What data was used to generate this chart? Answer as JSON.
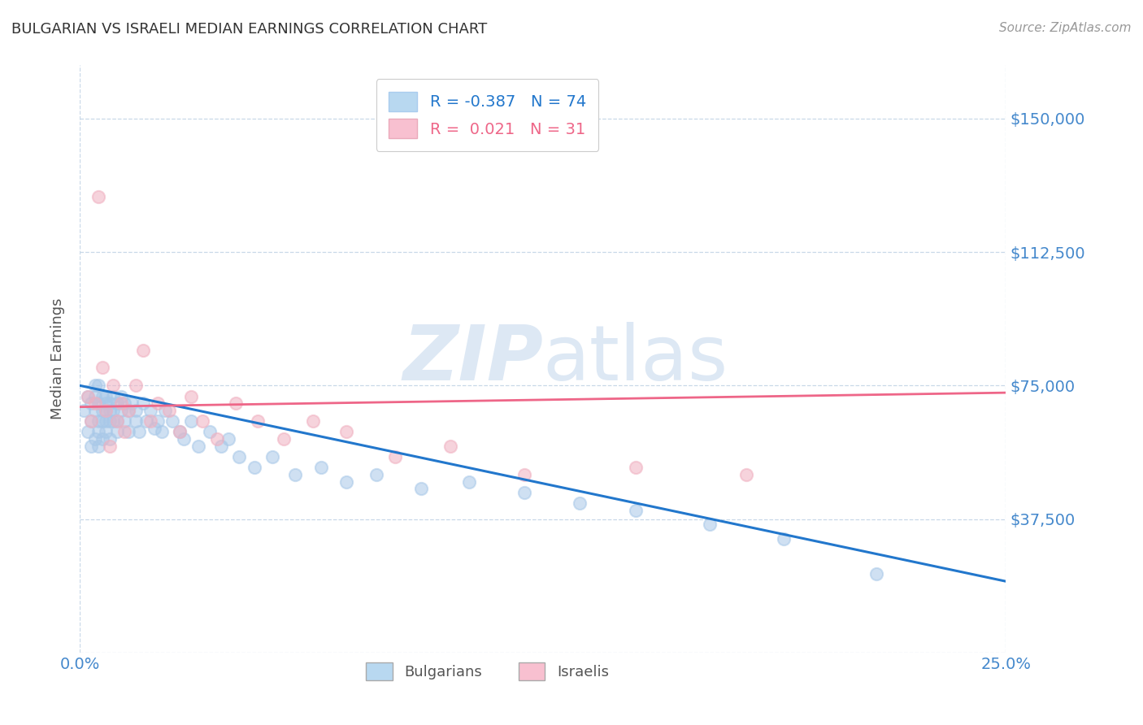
{
  "title": "BULGARIAN VS ISRAELI MEDIAN EARNINGS CORRELATION CHART",
  "source_text": "Source: ZipAtlas.com",
  "ylabel_text": "Median Earnings",
  "xlim": [
    0.0,
    0.25
  ],
  "ylim": [
    0,
    165000
  ],
  "yticks": [
    0,
    37500,
    75000,
    112500,
    150000
  ],
  "ytick_labels_right": [
    "",
    "$37,500",
    "$75,000",
    "$112,500",
    "$150,000"
  ],
  "xticks": [
    0.0,
    0.25
  ],
  "xtick_labels": [
    "0.0%",
    "25.0%"
  ],
  "r_bulgarian": -0.387,
  "n_bulgarian": 74,
  "r_israeli": 0.021,
  "n_israeli": 31,
  "bulgarian_color": "#a8c8e8",
  "israeli_color": "#f0b0c0",
  "bulgarian_line_color": "#2277cc",
  "israeli_line_color": "#ee6688",
  "title_color": "#333333",
  "axis_label_color": "#555555",
  "tick_label_color": "#4488cc",
  "grid_color": "#c8d8e8",
  "watermark_color": "#dde8f4",
  "legend_box_color_bulgarian": "#b8d8f0",
  "legend_box_color_israeli": "#f8c0d0",
  "bulgarians_scatter_x": [
    0.001,
    0.002,
    0.002,
    0.003,
    0.003,
    0.003,
    0.004,
    0.004,
    0.004,
    0.004,
    0.005,
    0.005,
    0.005,
    0.005,
    0.005,
    0.006,
    0.006,
    0.006,
    0.006,
    0.007,
    0.007,
    0.007,
    0.007,
    0.007,
    0.008,
    0.008,
    0.008,
    0.008,
    0.009,
    0.009,
    0.009,
    0.01,
    0.01,
    0.01,
    0.011,
    0.011,
    0.012,
    0.012,
    0.013,
    0.013,
    0.014,
    0.015,
    0.015,
    0.016,
    0.017,
    0.018,
    0.019,
    0.02,
    0.021,
    0.022,
    0.023,
    0.025,
    0.027,
    0.028,
    0.03,
    0.032,
    0.035,
    0.038,
    0.04,
    0.043,
    0.047,
    0.052,
    0.058,
    0.065,
    0.072,
    0.08,
    0.092,
    0.105,
    0.12,
    0.135,
    0.15,
    0.17,
    0.19,
    0.215
  ],
  "bulgarians_scatter_y": [
    68000,
    62000,
    72000,
    65000,
    70000,
    58000,
    75000,
    68000,
    60000,
    72000,
    65000,
    70000,
    58000,
    75000,
    62000,
    68000,
    72000,
    60000,
    65000,
    70000,
    65000,
    68000,
    72000,
    62000,
    70000,
    65000,
    68000,
    60000,
    72000,
    65000,
    68000,
    70000,
    65000,
    62000,
    68000,
    72000,
    65000,
    70000,
    68000,
    62000,
    70000,
    65000,
    68000,
    62000,
    70000,
    65000,
    68000,
    63000,
    65000,
    62000,
    68000,
    65000,
    62000,
    60000,
    65000,
    58000,
    62000,
    58000,
    60000,
    55000,
    52000,
    55000,
    50000,
    52000,
    48000,
    50000,
    46000,
    48000,
    45000,
    42000,
    40000,
    36000,
    32000,
    22000
  ],
  "israelis_scatter_x": [
    0.002,
    0.003,
    0.004,
    0.005,
    0.006,
    0.007,
    0.008,
    0.009,
    0.01,
    0.011,
    0.012,
    0.013,
    0.015,
    0.017,
    0.019,
    0.021,
    0.024,
    0.027,
    0.03,
    0.033,
    0.037,
    0.042,
    0.048,
    0.055,
    0.063,
    0.072,
    0.085,
    0.1,
    0.12,
    0.15,
    0.18
  ],
  "israelis_scatter_y": [
    72000,
    65000,
    70000,
    128000,
    80000,
    68000,
    58000,
    75000,
    65000,
    70000,
    62000,
    68000,
    75000,
    85000,
    65000,
    70000,
    68000,
    62000,
    72000,
    65000,
    60000,
    70000,
    65000,
    60000,
    65000,
    62000,
    55000,
    58000,
    50000,
    52000,
    50000
  ],
  "bg_trendline_x": [
    0.0,
    0.25
  ],
  "bg_trendline_y": [
    75000,
    20000
  ],
  "is_trendline_x": [
    0.0,
    0.25
  ],
  "is_trendline_y": [
    69000,
    73000
  ]
}
